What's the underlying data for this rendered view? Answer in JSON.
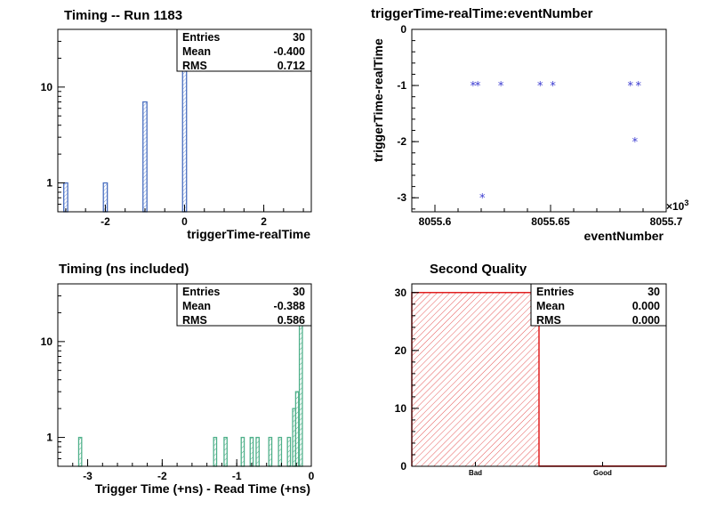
{
  "chart_data": [
    {
      "type": "bar",
      "title": "Timing -- Run 1183",
      "xlabel": "triggerTime-realTime",
      "ylabel": "",
      "yscale": "log",
      "xlim": [
        -3.2,
        3.2
      ],
      "ylim": [
        0.5,
        40
      ],
      "xticks": [
        -2,
        0,
        2
      ],
      "xtick_labels": [
        "-2",
        "0",
        "2"
      ],
      "yticks": [
        1,
        10
      ],
      "ytick_labels": [
        "1",
        "10"
      ],
      "bin_width": 0.1,
      "bins": [
        {
          "x": -3.0,
          "value": 1
        },
        {
          "x": -2.0,
          "value": 1
        },
        {
          "x": -1.0,
          "value": 7
        },
        {
          "x": 0.0,
          "value": 21
        }
      ],
      "color": "#4a6fc0",
      "stats": {
        "entries_label": "Entries",
        "entries": "30",
        "mean_label": "Mean",
        "mean": "-0.400",
        "rms_label": "RMS",
        "rms": "0.712"
      }
    },
    {
      "type": "scatter",
      "title": "triggerTime-realTime:eventNumber",
      "xlabel": "eventNumber",
      "ylabel": "triggerTime-realTime",
      "x_multiplier_label": "×10",
      "x_multiplier_exp": "3",
      "xlim": [
        8055.59,
        8055.7
      ],
      "ylim": [
        -3.25,
        0
      ],
      "xticks": [
        8055.6,
        8055.65,
        8055.7
      ],
      "xtick_labels": [
        "8055.6",
        "8055.65",
        "8055.7"
      ],
      "yticks": [
        0,
        -1,
        -2,
        -3
      ],
      "ytick_labels": [
        "0",
        "-1",
        "-2",
        "-3"
      ],
      "points": [
        {
          "x": 8055.6165,
          "y": -1
        },
        {
          "x": 8055.6185,
          "y": -1
        },
        {
          "x": 8055.6205,
          "y": -3
        },
        {
          "x": 8055.6285,
          "y": -1
        },
        {
          "x": 8055.6455,
          "y": -1
        },
        {
          "x": 8055.651,
          "y": -1
        },
        {
          "x": 8055.6845,
          "y": -1
        },
        {
          "x": 8055.6865,
          "y": -2
        },
        {
          "x": 8055.688,
          "y": -1
        }
      ],
      "color": "#3a3ad0"
    },
    {
      "type": "bar",
      "title": "Timing (ns included)",
      "xlabel": "Trigger Time (+ns) - Read Time (+ns)",
      "ylabel": "",
      "yscale": "log",
      "xlim": [
        -3.4,
        0
      ],
      "ylim": [
        0.5,
        40
      ],
      "xticks": [
        -3,
        -2,
        -1,
        0
      ],
      "xtick_labels": [
        "-3",
        "-2",
        "-1",
        "0"
      ],
      "yticks": [
        1,
        10
      ],
      "ytick_labels": [
        "1",
        "10"
      ],
      "bin_width": 0.04,
      "bins": [
        {
          "x": -3.1,
          "value": 1
        },
        {
          "x": -1.29,
          "value": 1
        },
        {
          "x": -1.15,
          "value": 1
        },
        {
          "x": -0.92,
          "value": 1
        },
        {
          "x": -0.8,
          "value": 1
        },
        {
          "x": -0.72,
          "value": 1
        },
        {
          "x": -0.55,
          "value": 1
        },
        {
          "x": -0.42,
          "value": 1
        },
        {
          "x": -0.3,
          "value": 1
        },
        {
          "x": -0.23,
          "value": 2
        },
        {
          "x": -0.19,
          "value": 3
        },
        {
          "x": -0.14,
          "value": 20
        }
      ],
      "color": "#4fb08a",
      "stats": {
        "entries_label": "Entries",
        "entries": "30",
        "mean_label": "Mean",
        "mean": "-0.388",
        "rms_label": "RMS",
        "rms": "0.586"
      }
    },
    {
      "type": "bar",
      "title": "Second Quality",
      "xlabel": "",
      "ylabel": "",
      "categories": [
        "Bad",
        "Good"
      ],
      "values": [
        30,
        0
      ],
      "ylim": [
        0,
        31.5
      ],
      "yticks": [
        0,
        10,
        20,
        30
      ],
      "ytick_labels": [
        "0",
        "10",
        "20",
        "30"
      ],
      "color": "#e02020",
      "stats": {
        "entries_label": "Entries",
        "entries": "30",
        "mean_label": "Mean",
        "mean": "0.000",
        "rms_label": "RMS",
        "rms": "0.000"
      }
    }
  ]
}
